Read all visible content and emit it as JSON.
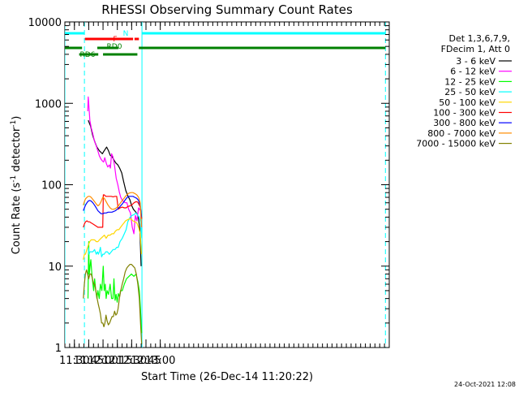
{
  "chart_data": {
    "type": "line",
    "title": "RHESSI Observing Summary Count Rates",
    "xlabel": "Start Time (26-Dec-14 11:20:22)",
    "ylabel_main": "Count Rate (s",
    "ylabel_sup1": "-1",
    "ylabel_mid": " detector",
    "ylabel_sup2": "-1",
    "ylabel_end": ")",
    "yscale": "log",
    "ylim": [
      1,
      10000
    ],
    "xlim_min": [
      680,
      1020
    ],
    "yticks": [
      {
        "v": 1,
        "label": "1"
      },
      {
        "v": 10,
        "label": "10"
      },
      {
        "v": 100,
        "label": "100"
      },
      {
        "v": 1000,
        "label": "1000"
      },
      {
        "v": 10000,
        "label": "10000"
      }
    ],
    "xticks": [
      {
        "t": 690,
        "label": "11:30"
      },
      {
        "t": 705,
        "label": "11:45"
      },
      {
        "t": 720,
        "label": "12:00"
      },
      {
        "t": 735,
        "label": "12:15"
      },
      {
        "t": 750,
        "label": "12:30"
      },
      {
        "t": 765,
        "label": "12:45"
      },
      {
        "t": 780,
        "label": "13:00"
      }
    ],
    "legend_title": [
      "Det 1,3,6,7,9,",
      "FDecim 1, Att 0"
    ],
    "series": [
      {
        "name": "3 - 6 keV",
        "color": "#000000",
        "x": [
          686,
          687.6,
          688.8,
          690.5,
          692,
          693.6,
          695.2,
          697.3,
          699.5,
          702,
          704.5,
          707,
          709.2,
          711.6,
          713.6,
          716.3,
          717.8,
          719.3,
          720.6,
          722,
          723.8,
          725.8,
          727.5,
          729.6,
          731.6,
          733.4,
          735.5,
          737.4,
          739.6,
          741.5,
          743.8,
          746.2,
          748,
          749.9,
          751.8,
          753.8,
          755.6,
          757.2,
          758.6,
          759.9
        ],
        "y": [
          null,
          null,
          null,
          null,
          null,
          null,
          null,
          null,
          null,
          null,
          620,
          520,
          400,
          330,
          290,
          260,
          250,
          240,
          255,
          270,
          290,
          260,
          230,
          220,
          200,
          185,
          175,
          160,
          140,
          110,
          85,
          72,
          66,
          56,
          50,
          47,
          44,
          38,
          28,
          10
        ]
      },
      {
        "name": "6 - 12 keV",
        "color": "#ff00ff",
        "x": [
          704,
          704.5,
          705,
          706.2,
          707.6,
          709.3,
          711.1,
          712.9,
          714.6,
          716.2,
          718,
          719.4,
          720.6,
          721.8,
          723.6,
          725,
          726.6,
          727.7,
          729,
          730.4,
          732.1,
          733.8,
          735.5,
          737.2,
          738.6,
          740,
          741.6,
          743.2,
          745,
          746.8,
          748.8,
          750.6,
          752.3,
          753.9,
          755.5,
          757.3,
          759.2,
          760.5
        ],
        "y": [
          800,
          1200,
          1000,
          620,
          500,
          420,
          340,
          300,
          260,
          225,
          205,
          195,
          190,
          215,
          180,
          165,
          175,
          160,
          240,
          220,
          170,
          120,
          100,
          80,
          70,
          65,
          62,
          60,
          60,
          50,
          45,
          30,
          25,
          42,
          36,
          52,
          48,
          30
        ]
      },
      {
        "name": "12 - 25 keV",
        "color": "#00ff00",
        "x": [
          699,
          701,
          702,
          703,
          704.2,
          705,
          705.6,
          706.4,
          707.2,
          708.3,
          709.4,
          710.2,
          711.2,
          712.4,
          713.6,
          714.6,
          716,
          717.2,
          718.8,
          720.2,
          721.2,
          722.3,
          723.3,
          724.3,
          725.7,
          727.4,
          729,
          730.4,
          731.4,
          732.6,
          733.7,
          734.8,
          736,
          737.2,
          738.4,
          740.2,
          742.3,
          744.6,
          747.2,
          749.8,
          752.3,
          754.6,
          756.4,
          758,
          759.2,
          760.5
        ],
        "y": [
          null,
          null,
          null,
          null,
          4,
          20,
          8,
          10,
          12,
          8,
          6,
          5,
          7,
          5,
          4,
          5,
          4,
          6,
          5,
          10,
          5,
          6,
          4,
          5,
          4.5,
          6,
          4,
          4,
          7,
          3.8,
          4.5,
          3.6,
          4.6,
          4.2,
          5,
          5,
          6,
          7,
          7.5,
          8,
          7.5,
          8,
          6.5,
          5,
          3,
          1.5
        ]
      },
      {
        "name": "25 - 50 keV",
        "color": "#00ffff",
        "x": [
          699,
          700.5,
          701.6,
          702.4,
          703.5,
          704.5,
          705.4,
          706.2,
          707.6,
          709.3,
          711.1,
          712.9,
          714.2,
          715.1,
          716.1,
          717.2,
          718.5,
          719.8,
          721.2,
          722.9,
          724.6,
          726.6,
          728.6,
          730.6,
          732.5,
          734.3,
          735.9,
          737.8,
          740.2,
          742.3,
          744.2,
          746,
          748.4,
          750.5,
          752.5,
          754.6,
          756.4,
          758,
          759.4,
          760.6
        ],
        "y": [
          null,
          null,
          null,
          null,
          null,
          17,
          14,
          15,
          15,
          15,
          16,
          14,
          15,
          14,
          15,
          17,
          13,
          14,
          14,
          15,
          15,
          14,
          15,
          16,
          16,
          17,
          17,
          20,
          22,
          25,
          28,
          35,
          40,
          42,
          43,
          45,
          42,
          40,
          35,
          22
        ]
      },
      {
        "name": "50 - 100 keV",
        "color": "#ffd700",
        "x": [
          699,
          699.3,
          700.5,
          701.6,
          703.1,
          704.5,
          706,
          707.5,
          709.3,
          711.1,
          712.9,
          714.6,
          716.2,
          717.9,
          719.7,
          721.4,
          723.3,
          725.3,
          727.4,
          729.3,
          731.2,
          733,
          734.8,
          736.6,
          738.4,
          740.2,
          742,
          743.6,
          745.4,
          747.4,
          749.4,
          751.3,
          753.3,
          755.4,
          757.3,
          759,
          760.3
        ],
        "y": [
          null,
          12,
          14,
          14,
          16,
          18,
          20,
          21,
          21,
          21,
          20,
          20,
          21,
          22,
          23,
          24,
          22,
          24,
          24,
          25,
          25,
          27,
          28,
          28,
          30,
          32,
          34,
          36,
          37,
          38,
          38,
          36,
          35,
          34,
          30,
          25,
          14
        ]
      },
      {
        "name": "100 - 300 keV",
        "color": "#ff0000",
        "x": [
          699,
          699.3,
          700.5,
          701.6,
          703.1,
          704.5,
          706,
          707.5,
          709.3,
          711.1,
          712.9,
          714.6,
          716.2,
          717.9,
          719.7,
          720.3,
          721.2,
          722.9,
          724.6,
          726.6,
          728.6,
          730.6,
          732.5,
          734.3,
          735.9,
          737.8,
          740.2,
          742.3,
          744.2,
          746,
          748.4,
          750.5,
          752.5,
          754.6,
          756.4,
          758,
          759.4,
          760.6
        ],
        "y": [
          null,
          30,
          33,
          35,
          36,
          35,
          35,
          34,
          33,
          32,
          31,
          30,
          30,
          30,
          30,
          75,
          75,
          72,
          72,
          72,
          72,
          71,
          72,
          72,
          50,
          52,
          53,
          52,
          52,
          54,
          55,
          57,
          60,
          62,
          61,
          56,
          52,
          38
        ]
      },
      {
        "name": "300 - 800 keV",
        "color": "#0000ff",
        "x": [
          699,
          699.3,
          700.5,
          701.6,
          703.1,
          704.5,
          706,
          707.5,
          709.3,
          711.1,
          712.9,
          714.6,
          716.2,
          717.9,
          719.7,
          721.4,
          723.3,
          725.3,
          727.4,
          729.3,
          731.2,
          733,
          734.8,
          736.6,
          738.4,
          740.2,
          742,
          743.6,
          745.4,
          747.4,
          749.4,
          751.3,
          753.3,
          755.4,
          757.3,
          759,
          760.3
        ],
        "y": [
          null,
          48,
          52,
          56,
          60,
          63,
          64,
          63,
          60,
          56,
          52,
          48,
          46,
          44,
          44,
          45,
          45,
          46,
          46,
          46,
          47,
          48,
          50,
          52,
          55,
          58,
          62,
          66,
          70,
          72,
          72,
          72,
          70,
          68,
          64,
          55,
          40
        ]
      },
      {
        "name": "800 - 7000 keV",
        "color": "#ff8c00",
        "x": [
          699,
          699.3,
          700.5,
          701.6,
          703.1,
          704.5,
          706,
          707.5,
          709.3,
          711.1,
          712.9,
          714.6,
          716.2,
          717.9,
          719.7,
          721.4,
          723.3,
          725.3,
          727.4,
          729.3,
          731.2,
          733,
          734.8,
          736.6,
          738.4,
          740.2,
          742,
          743.6,
          745.4,
          747.4,
          749.4,
          751.3,
          753.3,
          755.4,
          757.3,
          759,
          760.3
        ],
        "y": [
          null,
          56,
          62,
          67,
          70,
          72,
          72,
          70,
          66,
          62,
          58,
          55,
          57,
          62,
          70,
          68,
          62,
          56,
          52,
          50,
          50,
          51,
          53,
          56,
          60,
          64,
          68,
          72,
          76,
          79,
          80,
          80,
          78,
          75,
          70,
          60,
          30
        ]
      },
      {
        "name": "7000 - 15000 keV",
        "color": "#808000",
        "x": [
          699,
          699.4,
          700.4,
          701.5,
          702.7,
          703.8,
          705,
          706.3,
          707.6,
          708.9,
          710.2,
          711.3,
          712.5,
          713.8,
          715,
          716.1,
          717.2,
          718.5,
          719.8,
          720.9,
          722,
          723.1,
          724.4,
          725.6,
          726.9,
          728.2,
          729.5,
          730.8,
          732.1,
          733.4,
          734.6,
          735.8,
          737.1,
          738.6,
          740.1,
          741.6,
          743.2,
          744.9,
          746.5,
          748.2,
          749.9,
          751.6,
          753.3,
          754.9,
          756.5,
          758,
          759.3,
          760.5
        ],
        "y": [
          null,
          4,
          6,
          8,
          9,
          8,
          7,
          8,
          8,
          7,
          6,
          6,
          5,
          4,
          3.4,
          3,
          2.6,
          2,
          2,
          1.8,
          2,
          2.5,
          2.1,
          1.9,
          2,
          2.2,
          2.4,
          2.4,
          2.8,
          2.5,
          2.6,
          3,
          4,
          5,
          6,
          7,
          8.5,
          9.5,
          10,
          10.5,
          10.5,
          10,
          9.5,
          8,
          6,
          4,
          2,
          1.1
        ]
      }
    ],
    "attenuator_bars": [
      {
        "label": "N",
        "color": "#00ffff",
        "segments": [
          [
            680,
            700.5
          ],
          [
            760.8,
            1016
          ]
        ]
      },
      {
        "label": "F",
        "color": "#ff0000",
        "segments": [
          [
            701,
            751.5
          ],
          [
            753,
            757.6
          ]
        ]
      },
      {
        "label": "RD0",
        "color": "#008000",
        "segments": [
          [
            680,
            698
          ],
          [
            714,
            736
          ],
          [
            757.5,
            1016
          ]
        ]
      },
      {
        "label": "RD6",
        "color": "#008000",
        "segments": [
          [
            695,
            715
          ],
          [
            720,
            756
          ]
        ]
      }
    ],
    "vertical_lines": [
      {
        "t": 680,
        "style": "solid"
      },
      {
        "t": 700.5,
        "style": "dashed"
      },
      {
        "t": 760.8,
        "style": "solid"
      },
      {
        "t": 1016,
        "style": "dashed"
      }
    ],
    "footer": "24-Oct-2021 12:08"
  }
}
